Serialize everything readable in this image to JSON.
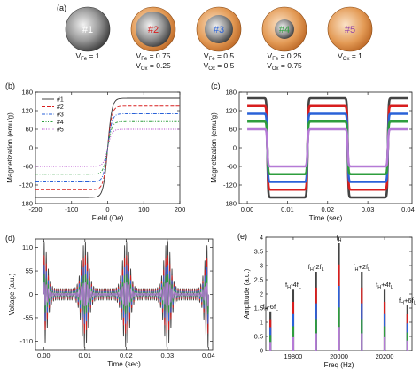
{
  "panel_a": {
    "label": "(a)",
    "spheres": [
      {
        "id": "#1",
        "id_color": "#ffffff",
        "shell": false,
        "core_color": "#7a7a7a",
        "lines": [
          {
            "main": "V",
            "sub": "Fe",
            "rest": " = 1"
          }
        ]
      },
      {
        "id": "#2",
        "id_color": "#d81e1e",
        "shell": true,
        "core_color": "#7a7a7a",
        "lines": [
          {
            "main": "V",
            "sub": "Fe",
            "rest": " = 0.75"
          },
          {
            "main": "V",
            "sub": "Ox",
            "rest": " = 0.25"
          }
        ]
      },
      {
        "id": "#3",
        "id_color": "#2a62d8",
        "shell": true,
        "core_color": "#7a7a7a",
        "lines": [
          {
            "main": "V",
            "sub": "Fe",
            "rest": " = 0.5"
          },
          {
            "main": "V",
            "sub": "Ox",
            "rest": " = 0.5"
          }
        ]
      },
      {
        "id": "#4",
        "id_color": "#2e9e3e",
        "shell": true,
        "core_color": "#7a7a7a",
        "lines": [
          {
            "main": "V",
            "sub": "Fe",
            "rest": " = 0.25"
          },
          {
            "main": "V",
            "sub": "Ox",
            "rest": " = 0.75"
          }
        ]
      },
      {
        "id": "#5",
        "id_color": "#8f3fa8",
        "shell": true,
        "core_color": "none",
        "lines": [
          {
            "main": "V",
            "sub": "Ox",
            "rest": " = 1"
          }
        ]
      }
    ],
    "shell_color": "#d9823a"
  },
  "chart_data": [
    {
      "panel": "(b)",
      "type": "line",
      "xlabel": "Field (Oe)",
      "ylabel": "Magnetization (emu/g)",
      "xlim": [
        -200,
        200
      ],
      "ylim": [
        -180,
        180
      ],
      "xticks": [
        -200,
        -100,
        0,
        100,
        200
      ],
      "yticks": [
        -180,
        -120,
        -60,
        0,
        60,
        120,
        180
      ],
      "legend_position": "top-left",
      "series": [
        {
          "name": "#1",
          "color": "#333333",
          "dash": "solid",
          "ms": 160
        },
        {
          "name": "#2",
          "color": "#d81e1e",
          "dash": "dash",
          "ms": 135
        },
        {
          "name": "#3",
          "color": "#2a62d8",
          "dash": "dashdot",
          "ms": 110
        },
        {
          "name": "#4",
          "color": "#2e9e3e",
          "dash": "dashdotdot",
          "ms": 85
        },
        {
          "name": "#5",
          "color": "#b040c8",
          "dash": "dot",
          "ms": 60
        }
      ]
    },
    {
      "panel": "(c)",
      "type": "line",
      "xlabel": "Time (sec)",
      "ylabel": "Magnetization (emu/g)",
      "xlim": [
        -0.002,
        0.041
      ],
      "ylim": [
        -180,
        180
      ],
      "xticks": [
        0.0,
        0.01,
        0.02,
        0.03,
        0.04
      ],
      "yticks": [
        -180,
        -120,
        -60,
        0,
        60,
        120,
        180
      ],
      "period": 0.02,
      "series": [
        {
          "name": "#1",
          "color": "#444444",
          "ms": 160
        },
        {
          "name": "#2",
          "color": "#d81e1e",
          "ms": 135
        },
        {
          "name": "#3",
          "color": "#2a62d8",
          "ms": 110
        },
        {
          "name": "#4",
          "color": "#2e9e3e",
          "ms": 85
        },
        {
          "name": "#5",
          "color": "#b57ad6",
          "ms": 60
        }
      ]
    },
    {
      "panel": "(d)",
      "type": "line",
      "xlabel": "Time (sec)",
      "ylabel": "Voltage (a.u.)",
      "xlim": [
        -0.002,
        0.041
      ],
      "ylim": [
        -130,
        130
      ],
      "xticks": [
        0.0,
        0.01,
        0.02,
        0.03,
        0.04
      ],
      "yticks": [
        -110,
        -55,
        0,
        55,
        110
      ],
      "pulse_period": 0.01,
      "series": [
        {
          "name": "#1",
          "color": "#444444",
          "peak": 112
        },
        {
          "name": "#2",
          "color": "#d81e1e",
          "peak": 82
        },
        {
          "name": "#3",
          "color": "#2a62d8",
          "peak": 62
        },
        {
          "name": "#4",
          "color": "#2e9e3e",
          "peak": 42
        },
        {
          "name": "#5",
          "color": "#b57ad6",
          "peak": 25
        }
      ]
    },
    {
      "panel": "(e)",
      "type": "bar",
      "xlabel": "Freq (Hz)",
      "ylabel": "Amplitude (a.u.)",
      "xlim": [
        19680,
        20320
      ],
      "ylim": [
        0,
        4
      ],
      "xticks": [
        19800,
        20000,
        20200
      ],
      "yticks": [
        0,
        0.5,
        1,
        1.5,
        2,
        2.5,
        3,
        3.5,
        4
      ],
      "peaks": [
        {
          "freq": 19700,
          "amp": 1.38,
          "label_main": "f",
          "label_sub1": "H",
          "label_mid": "-6f",
          "label_sub2": "L"
        },
        {
          "freq": 19800,
          "amp": 2.15,
          "label_main": "f",
          "label_sub1": "H",
          "label_mid": "-4f",
          "label_sub2": "L"
        },
        {
          "freq": 19900,
          "amp": 2.78,
          "label_main": "f",
          "label_sub1": "H",
          "label_mid": "-2f",
          "label_sub2": "L"
        },
        {
          "freq": 20000,
          "amp": 3.8,
          "label_main": "f",
          "label_sub1": "H",
          "label_mid": "",
          "label_sub2": ""
        },
        {
          "freq": 20100,
          "amp": 2.78,
          "label_main": "f",
          "label_sub1": "H",
          "label_mid": "+2f",
          "label_sub2": "L"
        },
        {
          "freq": 20200,
          "amp": 2.15,
          "label_main": "f",
          "label_sub1": "H",
          "label_mid": "+4f",
          "label_sub2": "L"
        },
        {
          "freq": 20300,
          "amp": 1.6,
          "label_main": "f",
          "label_sub1": "H",
          "label_mid": "+6f",
          "label_sub2": "L"
        }
      ],
      "series_colors": [
        "#444444",
        "#d81e1e",
        "#2a62d8",
        "#2e9e3e",
        "#b57ad6"
      ],
      "series_fraction": [
        1.0,
        0.8,
        0.6,
        0.4,
        0.22
      ]
    }
  ]
}
